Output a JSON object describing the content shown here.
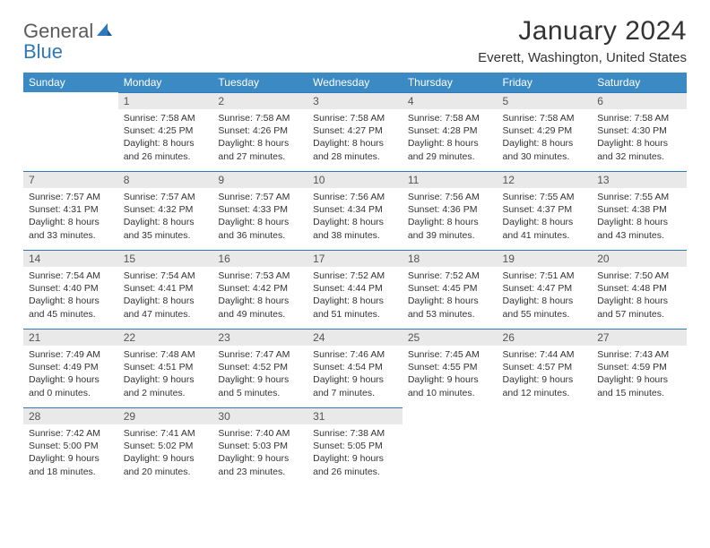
{
  "brand": {
    "word1": "General",
    "word2": "Blue"
  },
  "title": "January 2024",
  "location": "Everett, Washington, United States",
  "colors": {
    "header_bg": "#3b8ac4",
    "header_text": "#ffffff",
    "daynum_bg": "#e9e9e9",
    "daynum_text": "#555555",
    "border": "#2f78bc",
    "body_text": "#333333",
    "logo_gray": "#5a5a5a",
    "logo_blue": "#2f78bc"
  },
  "typography": {
    "title_fontsize": 30,
    "location_fontsize": 15,
    "dayhead_fontsize": 12,
    "daynum_fontsize": 12,
    "info_fontsize": 10.5,
    "logo_fontsize": 22
  },
  "day_names": [
    "Sunday",
    "Monday",
    "Tuesday",
    "Wednesday",
    "Thursday",
    "Friday",
    "Saturday"
  ],
  "weeks": [
    [
      null,
      {
        "n": "1",
        "sr": "Sunrise: 7:58 AM",
        "ss": "Sunset: 4:25 PM",
        "d1": "Daylight: 8 hours",
        "d2": "and 26 minutes."
      },
      {
        "n": "2",
        "sr": "Sunrise: 7:58 AM",
        "ss": "Sunset: 4:26 PM",
        "d1": "Daylight: 8 hours",
        "d2": "and 27 minutes."
      },
      {
        "n": "3",
        "sr": "Sunrise: 7:58 AM",
        "ss": "Sunset: 4:27 PM",
        "d1": "Daylight: 8 hours",
        "d2": "and 28 minutes."
      },
      {
        "n": "4",
        "sr": "Sunrise: 7:58 AM",
        "ss": "Sunset: 4:28 PM",
        "d1": "Daylight: 8 hours",
        "d2": "and 29 minutes."
      },
      {
        "n": "5",
        "sr": "Sunrise: 7:58 AM",
        "ss": "Sunset: 4:29 PM",
        "d1": "Daylight: 8 hours",
        "d2": "and 30 minutes."
      },
      {
        "n": "6",
        "sr": "Sunrise: 7:58 AM",
        "ss": "Sunset: 4:30 PM",
        "d1": "Daylight: 8 hours",
        "d2": "and 32 minutes."
      }
    ],
    [
      {
        "n": "7",
        "sr": "Sunrise: 7:57 AM",
        "ss": "Sunset: 4:31 PM",
        "d1": "Daylight: 8 hours",
        "d2": "and 33 minutes."
      },
      {
        "n": "8",
        "sr": "Sunrise: 7:57 AM",
        "ss": "Sunset: 4:32 PM",
        "d1": "Daylight: 8 hours",
        "d2": "and 35 minutes."
      },
      {
        "n": "9",
        "sr": "Sunrise: 7:57 AM",
        "ss": "Sunset: 4:33 PM",
        "d1": "Daylight: 8 hours",
        "d2": "and 36 minutes."
      },
      {
        "n": "10",
        "sr": "Sunrise: 7:56 AM",
        "ss": "Sunset: 4:34 PM",
        "d1": "Daylight: 8 hours",
        "d2": "and 38 minutes."
      },
      {
        "n": "11",
        "sr": "Sunrise: 7:56 AM",
        "ss": "Sunset: 4:36 PM",
        "d1": "Daylight: 8 hours",
        "d2": "and 39 minutes."
      },
      {
        "n": "12",
        "sr": "Sunrise: 7:55 AM",
        "ss": "Sunset: 4:37 PM",
        "d1": "Daylight: 8 hours",
        "d2": "and 41 minutes."
      },
      {
        "n": "13",
        "sr": "Sunrise: 7:55 AM",
        "ss": "Sunset: 4:38 PM",
        "d1": "Daylight: 8 hours",
        "d2": "and 43 minutes."
      }
    ],
    [
      {
        "n": "14",
        "sr": "Sunrise: 7:54 AM",
        "ss": "Sunset: 4:40 PM",
        "d1": "Daylight: 8 hours",
        "d2": "and 45 minutes."
      },
      {
        "n": "15",
        "sr": "Sunrise: 7:54 AM",
        "ss": "Sunset: 4:41 PM",
        "d1": "Daylight: 8 hours",
        "d2": "and 47 minutes."
      },
      {
        "n": "16",
        "sr": "Sunrise: 7:53 AM",
        "ss": "Sunset: 4:42 PM",
        "d1": "Daylight: 8 hours",
        "d2": "and 49 minutes."
      },
      {
        "n": "17",
        "sr": "Sunrise: 7:52 AM",
        "ss": "Sunset: 4:44 PM",
        "d1": "Daylight: 8 hours",
        "d2": "and 51 minutes."
      },
      {
        "n": "18",
        "sr": "Sunrise: 7:52 AM",
        "ss": "Sunset: 4:45 PM",
        "d1": "Daylight: 8 hours",
        "d2": "and 53 minutes."
      },
      {
        "n": "19",
        "sr": "Sunrise: 7:51 AM",
        "ss": "Sunset: 4:47 PM",
        "d1": "Daylight: 8 hours",
        "d2": "and 55 minutes."
      },
      {
        "n": "20",
        "sr": "Sunrise: 7:50 AM",
        "ss": "Sunset: 4:48 PM",
        "d1": "Daylight: 8 hours",
        "d2": "and 57 minutes."
      }
    ],
    [
      {
        "n": "21",
        "sr": "Sunrise: 7:49 AM",
        "ss": "Sunset: 4:49 PM",
        "d1": "Daylight: 9 hours",
        "d2": "and 0 minutes."
      },
      {
        "n": "22",
        "sr": "Sunrise: 7:48 AM",
        "ss": "Sunset: 4:51 PM",
        "d1": "Daylight: 9 hours",
        "d2": "and 2 minutes."
      },
      {
        "n": "23",
        "sr": "Sunrise: 7:47 AM",
        "ss": "Sunset: 4:52 PM",
        "d1": "Daylight: 9 hours",
        "d2": "and 5 minutes."
      },
      {
        "n": "24",
        "sr": "Sunrise: 7:46 AM",
        "ss": "Sunset: 4:54 PM",
        "d1": "Daylight: 9 hours",
        "d2": "and 7 minutes."
      },
      {
        "n": "25",
        "sr": "Sunrise: 7:45 AM",
        "ss": "Sunset: 4:55 PM",
        "d1": "Daylight: 9 hours",
        "d2": "and 10 minutes."
      },
      {
        "n": "26",
        "sr": "Sunrise: 7:44 AM",
        "ss": "Sunset: 4:57 PM",
        "d1": "Daylight: 9 hours",
        "d2": "and 12 minutes."
      },
      {
        "n": "27",
        "sr": "Sunrise: 7:43 AM",
        "ss": "Sunset: 4:59 PM",
        "d1": "Daylight: 9 hours",
        "d2": "and 15 minutes."
      }
    ],
    [
      {
        "n": "28",
        "sr": "Sunrise: 7:42 AM",
        "ss": "Sunset: 5:00 PM",
        "d1": "Daylight: 9 hours",
        "d2": "and 18 minutes."
      },
      {
        "n": "29",
        "sr": "Sunrise: 7:41 AM",
        "ss": "Sunset: 5:02 PM",
        "d1": "Daylight: 9 hours",
        "d2": "and 20 minutes."
      },
      {
        "n": "30",
        "sr": "Sunrise: 7:40 AM",
        "ss": "Sunset: 5:03 PM",
        "d1": "Daylight: 9 hours",
        "d2": "and 23 minutes."
      },
      {
        "n": "31",
        "sr": "Sunrise: 7:38 AM",
        "ss": "Sunset: 5:05 PM",
        "d1": "Daylight: 9 hours",
        "d2": "and 26 minutes."
      },
      null,
      null,
      null
    ]
  ]
}
